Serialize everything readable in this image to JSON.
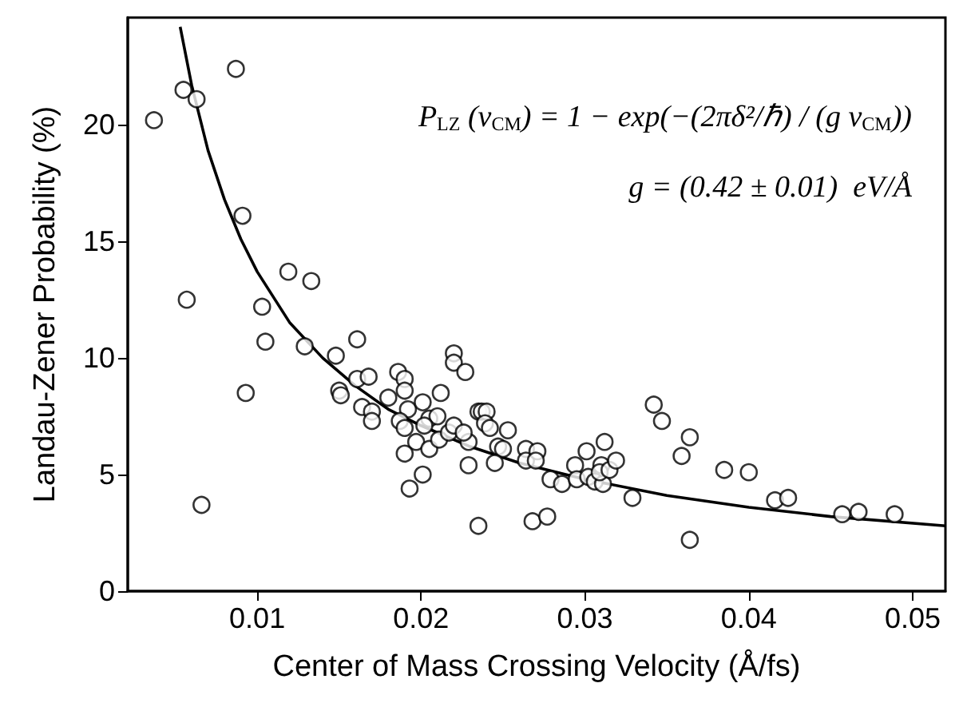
{
  "chart_data": {
    "type": "scatter",
    "xlabel": "Center of Mass Crossing Velocity (Å/fs)",
    "ylabel": "Landau-Zener Probability (%)",
    "annotations": [
      "P$_{LZ}$ (v$_{CM}$) = 1 − exp(−(2πδ²/ℏ) / (g v$_{CM}$))",
      "g = (0.42 ± 0.01)  eV/Å"
    ],
    "xlim": [
      0.0021,
      0.052
    ],
    "ylim": [
      0,
      24.6
    ],
    "xticks": [
      0.01,
      0.02,
      0.03,
      0.04,
      0.05
    ],
    "yticks": [
      0,
      5,
      10,
      15,
      20
    ],
    "grid": false,
    "marker": "circle",
    "series": [
      {
        "color": "#000000",
        "x": [
          0.0037,
          0.0055,
          0.0063,
          0.0087,
          0.0091,
          0.0119,
          0.0133,
          0.0057,
          0.0103,
          0.0105,
          0.0129,
          0.0148,
          0.0161,
          0.0093,
          0.0066,
          0.015,
          0.0151,
          0.0161,
          0.0168,
          0.0164,
          0.017,
          0.017,
          0.018,
          0.0186,
          0.019,
          0.019,
          0.0212,
          0.0192,
          0.0187,
          0.019,
          0.0201,
          0.0205,
          0.021,
          0.0197,
          0.0205,
          0.019,
          0.0202,
          0.0211,
          0.0217,
          0.022,
          0.022,
          0.022,
          0.0227,
          0.0229,
          0.0201,
          0.0193,
          0.0235,
          0.0229,
          0.0235,
          0.0237,
          0.024,
          0.0239,
          0.0242,
          0.0253,
          0.0247,
          0.025,
          0.0245,
          0.0226,
          0.0264,
          0.0264,
          0.0271,
          0.027,
          0.0268,
          0.0277,
          0.0279,
          0.0286,
          0.0294,
          0.0295,
          0.0301,
          0.0302,
          0.0306,
          0.0311,
          0.031,
          0.0312,
          0.0309,
          0.0315,
          0.0319,
          0.0329,
          0.0342,
          0.0347,
          0.0359,
          0.0364,
          0.0364,
          0.0385,
          0.04,
          0.0416,
          0.0424,
          0.0457,
          0.0467,
          0.0489
        ],
        "values": [
          20.2,
          21.5,
          21.1,
          22.4,
          16.1,
          13.7,
          13.3,
          12.5,
          12.2,
          10.7,
          10.5,
          10.1,
          10.8,
          8.5,
          3.7,
          8.6,
          8.4,
          9.1,
          9.2,
          7.9,
          7.7,
          7.3,
          8.3,
          9.4,
          9.1,
          8.6,
          8.5,
          7.8,
          7.3,
          7.0,
          8.1,
          7.4,
          7.5,
          6.4,
          6.1,
          5.9,
          7.1,
          6.5,
          6.8,
          7.1,
          10.2,
          9.8,
          9.4,
          5.4,
          5.0,
          4.4,
          2.8,
          6.4,
          7.7,
          7.7,
          7.7,
          7.2,
          7.0,
          6.9,
          6.2,
          6.1,
          5.5,
          6.8,
          6.1,
          5.6,
          6.0,
          5.6,
          3.0,
          3.2,
          4.8,
          4.6,
          5.4,
          4.8,
          6.0,
          4.9,
          4.7,
          4.6,
          5.4,
          6.4,
          5.1,
          5.2,
          5.6,
          4.0,
          8.0,
          7.3,
          5.8,
          6.6,
          2.2,
          5.2,
          5.1,
          3.9,
          4.0,
          3.3,
          3.4,
          3.3
        ]
      },
      {
        "type": "line",
        "color": "#000000",
        "marker": "none",
        "line_style": "solid",
        "x": [
          0.0053,
          0.006,
          0.007,
          0.008,
          0.009,
          0.01,
          0.012,
          0.014,
          0.016,
          0.018,
          0.02,
          0.023,
          0.026,
          0.03,
          0.035,
          0.04,
          0.045,
          0.052
        ],
        "values": [
          24.2,
          21.7,
          18.9,
          16.8,
          15.1,
          13.7,
          11.5,
          10.0,
          8.8,
          7.8,
          7.1,
          6.2,
          5.5,
          4.8,
          4.1,
          3.6,
          3.2,
          2.8
        ]
      }
    ]
  }
}
